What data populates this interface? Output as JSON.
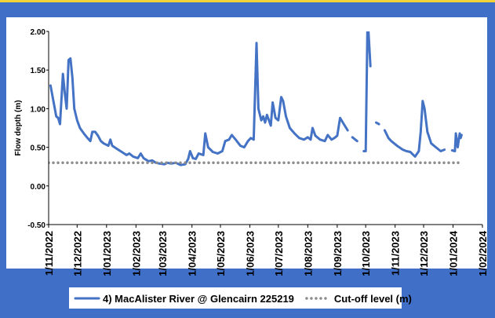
{
  "chart_data": {
    "type": "line",
    "y_label": "Flow depth (m)",
    "x": [
      "2022-11-03",
      "2022-11-09",
      "2022-11-11",
      "2022-11-13",
      "2022-11-16",
      "2022-11-18",
      "2022-11-20",
      "2022-11-22",
      "2022-11-24",
      "2022-11-26",
      "2022-11-28",
      "2022-12-01",
      "2022-12-04",
      "2022-12-08",
      "2022-12-12",
      "2022-12-15",
      "2022-12-17",
      "2022-12-20",
      "2022-12-23",
      "2022-12-26",
      "2022-12-29",
      "2023-01-03",
      "2023-01-05",
      "2023-01-07",
      "2023-01-12",
      "2023-01-17",
      "2023-01-22",
      "2023-01-25",
      "2023-01-29",
      "2023-02-03",
      "2023-02-06",
      "2023-02-09",
      "2023-02-14",
      "2023-02-18",
      "2023-02-22",
      "2023-02-26",
      "2023-03-03",
      "2023-03-06",
      "2023-03-10",
      "2023-03-15",
      "2023-03-20",
      "2023-03-25",
      "2023-03-28",
      "2023-03-30",
      "2023-04-02",
      "2023-04-05",
      "2023-04-08",
      "2023-04-13",
      "2023-04-15",
      "2023-04-18",
      "2023-04-23",
      "2023-04-28",
      "2023-05-03",
      "2023-05-06",
      "2023-05-10",
      "2023-05-13",
      "2023-05-17",
      "2023-05-22",
      "2023-05-26",
      "2023-05-30",
      "2023-06-02",
      "2023-06-05",
      "2023-06-08",
      "2023-06-10",
      "2023-06-13",
      "2023-06-15",
      "2023-06-17",
      "2023-06-19",
      "2023-06-23",
      "2023-06-25",
      "2023-06-28",
      "2023-07-01",
      "2023-07-04",
      "2023-07-06",
      "2023-07-09",
      "2023-07-13",
      "2023-07-18",
      "2023-07-23",
      "2023-07-28",
      "2023-08-01",
      "2023-08-04",
      "2023-08-06",
      "2023-08-09",
      "2023-08-14",
      "2023-08-19",
      "2023-08-22",
      "2023-08-26",
      "2023-08-29",
      "2023-09-01",
      "2023-09-04",
      "2023-09-08",
      "2023-09-12",
      "2023-09-14",
      "2023-09-17",
      "2023-09-22",
      "2023-09-26",
      "2023-09-29",
      "2023-10-01",
      "2023-10-03",
      "2023-10-06",
      "2023-10-08",
      "2023-10-12",
      "2023-10-15",
      "2023-10-17",
      "2023-10-21",
      "2023-10-25",
      "2023-10-28",
      "2023-11-03",
      "2023-11-09",
      "2023-11-13",
      "2023-11-17",
      "2023-11-22",
      "2023-11-26",
      "2023-11-28",
      "2023-11-30",
      "2023-12-02",
      "2023-12-05",
      "2023-12-09",
      "2023-12-14",
      "2023-12-19",
      "2023-12-23",
      "2023-12-26",
      "2023-12-31",
      "2024-01-03",
      "2024-01-04",
      "2024-01-06",
      "2024-01-08",
      "2024-01-09",
      "2024-01-10"
    ],
    "series": [
      {
        "name": "4) MacAlister River @ Glencairn 225219",
        "color": "#4472c4",
        "values": [
          1.3,
          0.9,
          0.88,
          0.8,
          1.45,
          1.2,
          1.0,
          1.63,
          1.65,
          1.4,
          1.0,
          0.85,
          0.75,
          0.68,
          0.62,
          0.58,
          0.7,
          0.7,
          0.65,
          0.58,
          0.55,
          0.52,
          0.6,
          0.52,
          0.48,
          0.44,
          0.4,
          0.42,
          0.38,
          0.36,
          0.42,
          0.36,
          0.32,
          0.33,
          0.3,
          0.29,
          0.28,
          0.3,
          0.29,
          0.3,
          0.27,
          0.28,
          0.35,
          0.45,
          0.36,
          0.35,
          0.42,
          0.4,
          0.68,
          0.5,
          0.44,
          0.42,
          0.45,
          0.58,
          0.6,
          0.66,
          0.6,
          0.52,
          0.5,
          0.58,
          0.62,
          0.6,
          1.85,
          1.0,
          0.85,
          0.9,
          0.82,
          0.92,
          0.78,
          1.08,
          0.88,
          0.85,
          1.15,
          1.1,
          0.9,
          0.75,
          0.68,
          0.62,
          0.6,
          0.63,
          0.6,
          0.75,
          0.65,
          0.6,
          0.58,
          0.66,
          0.6,
          0.62,
          0.65,
          0.88,
          0.8,
          0.72,
          null,
          0.63,
          0.58,
          null,
          0.45,
          0.45,
          2.2,
          1.55,
          null,
          0.82,
          0.8,
          null,
          0.72,
          0.62,
          0.58,
          0.52,
          0.47,
          0.45,
          0.44,
          0.38,
          0.45,
          0.7,
          1.1,
          1.0,
          0.7,
          0.55,
          0.5,
          0.45,
          0.47,
          null,
          0.46,
          0.45,
          0.68,
          0.5,
          0.68,
          0.62,
          0.66
        ]
      },
      {
        "name": "Cut-off level (m)",
        "color": "#8c8c8c",
        "dotted": true,
        "x": [
          "2022-11-01",
          "2024-01-10"
        ],
        "values": [
          0.3,
          0.3
        ]
      }
    ],
    "xlim": [
      "2022-11-01",
      "2024-02-01"
    ],
    "xticks": [
      {
        "value": "2022-11-01",
        "label": "1/11/2022"
      },
      {
        "value": "2022-12-01",
        "label": "1/12/2022"
      },
      {
        "value": "2023-01-01",
        "label": "1/01/2023"
      },
      {
        "value": "2023-02-01",
        "label": "1/02/2023"
      },
      {
        "value": "2023-03-01",
        "label": "1/03/2023"
      },
      {
        "value": "2023-04-01",
        "label": "1/04/2023"
      },
      {
        "value": "2023-05-01",
        "label": "1/05/2023"
      },
      {
        "value": "2023-06-01",
        "label": "1/06/2023"
      },
      {
        "value": "2023-07-01",
        "label": "1/07/2023"
      },
      {
        "value": "2023-08-01",
        "label": "1/08/2023"
      },
      {
        "value": "2023-09-01",
        "label": "1/09/2023"
      },
      {
        "value": "2023-10-01",
        "label": "1/10/2023"
      },
      {
        "value": "2023-11-01",
        "label": "1/11/2023"
      },
      {
        "value": "2023-12-01",
        "label": "1/12/2023"
      },
      {
        "value": "2024-01-01",
        "label": "1/01/2024"
      },
      {
        "value": "2024-02-01",
        "label": "1/02/2024"
      }
    ],
    "ylim": [
      -0.5,
      2.0
    ],
    "yticks": [
      {
        "value": -0.5,
        "label": "-0.50"
      },
      {
        "value": 0,
        "label": "0.00"
      },
      {
        "value": 0.5,
        "label": "0.50"
      },
      {
        "value": 1,
        "label": "1.00"
      },
      {
        "value": 1.5,
        "label": "1.50"
      },
      {
        "value": 2,
        "label": "2.00"
      }
    ],
    "grid": false,
    "legend": "bottom"
  }
}
